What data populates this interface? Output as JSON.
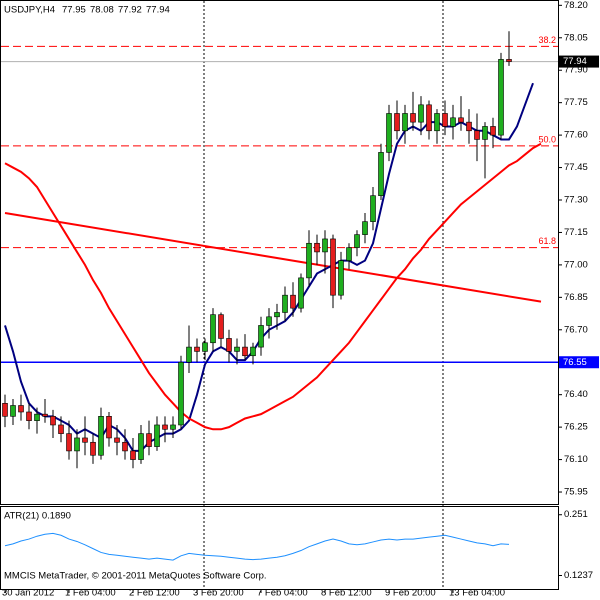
{
  "chart_data": [
    {
      "type": "candlestick",
      "title": "USDJPY,H4",
      "categories": [
        "30 Jan 2012",
        null,
        null,
        null,
        null,
        null,
        null,
        null,
        "1 Feb 04:00",
        null,
        null,
        null,
        null,
        null,
        null,
        null,
        "2 Feb 12:00",
        null,
        null,
        null,
        null,
        null,
        null,
        null,
        "3 Feb 20:00",
        null,
        null,
        null,
        null,
        null,
        null,
        null,
        "7 Feb 04:00",
        null,
        null,
        null,
        null,
        null,
        null,
        null,
        "8 Feb 12:00",
        null,
        null,
        null,
        null,
        null,
        null,
        null,
        "9 Feb 20:00",
        null,
        null,
        null,
        null,
        null,
        null,
        null,
        "13 Feb 04:00",
        null,
        null,
        null,
        null,
        null,
        null,
        null,
        null,
        null,
        null,
        null
      ],
      "open": [
        76.36,
        76.3,
        76.35,
        76.32,
        76.28,
        76.31,
        76.3,
        76.26,
        76.22,
        76.14,
        76.2,
        76.18,
        76.12,
        76.3,
        76.2,
        76.18,
        76.14,
        76.1,
        76.22,
        76.16,
        76.26,
        76.24,
        76.26,
        76.55,
        76.62,
        76.6,
        76.64,
        76.77,
        76.66,
        76.6,
        76.62,
        76.58,
        76.62,
        76.72,
        76.76,
        76.78,
        76.86,
        76.8,
        76.94,
        77.1,
        77.06,
        77.12,
        76.86,
        77.02,
        77.08,
        77.14,
        77.2,
        77.32,
        77.52,
        77.7,
        77.62,
        77.7,
        77.66,
        77.74,
        77.62,
        77.7,
        77.64,
        77.68,
        77.66,
        77.62,
        77.58,
        77.64,
        77.6,
        77.95,
        null,
        null,
        null,
        null
      ],
      "high": [
        76.4,
        76.38,
        76.4,
        76.36,
        76.34,
        76.38,
        76.33,
        76.3,
        76.28,
        76.24,
        76.3,
        76.22,
        76.34,
        76.32,
        76.26,
        76.24,
        76.2,
        76.26,
        76.28,
        76.3,
        76.3,
        76.3,
        76.58,
        76.72,
        76.66,
        76.66,
        76.8,
        76.78,
        76.7,
        76.66,
        76.68,
        76.64,
        76.76,
        76.8,
        76.82,
        76.9,
        76.92,
        76.96,
        77.16,
        77.14,
        77.16,
        77.14,
        77.06,
        77.1,
        77.16,
        77.24,
        77.36,
        77.56,
        77.74,
        77.76,
        77.74,
        77.8,
        77.78,
        77.76,
        77.72,
        77.76,
        77.74,
        77.78,
        77.72,
        77.7,
        77.66,
        77.68,
        77.98,
        78.08,
        null,
        null,
        null,
        null
      ],
      "low": [
        76.25,
        76.26,
        76.28,
        76.24,
        76.22,
        76.27,
        76.2,
        76.18,
        76.1,
        76.06,
        76.12,
        76.08,
        76.1,
        76.16,
        76.12,
        76.1,
        76.06,
        76.08,
        76.12,
        76.14,
        76.18,
        76.2,
        76.24,
        76.5,
        76.55,
        76.56,
        76.6,
        76.62,
        76.55,
        76.54,
        76.56,
        76.54,
        76.58,
        76.66,
        76.7,
        76.74,
        76.76,
        76.78,
        76.9,
        77.0,
        76.96,
        76.8,
        76.84,
        76.98,
        77.04,
        77.1,
        77.16,
        77.3,
        77.48,
        77.58,
        77.56,
        77.62,
        77.6,
        77.58,
        77.56,
        77.6,
        77.58,
        77.62,
        77.56,
        77.48,
        77.4,
        77.54,
        77.58,
        77.92,
        null,
        null,
        null,
        null
      ],
      "close": [
        76.3,
        76.35,
        76.32,
        76.28,
        76.31,
        76.3,
        76.26,
        76.22,
        76.14,
        76.2,
        76.18,
        76.12,
        76.3,
        76.2,
        76.18,
        76.14,
        76.1,
        76.22,
        76.16,
        76.26,
        76.24,
        76.26,
        76.55,
        76.62,
        76.6,
        76.64,
        76.77,
        76.66,
        76.6,
        76.62,
        76.58,
        76.62,
        76.72,
        76.76,
        76.78,
        76.86,
        76.8,
        76.94,
        77.1,
        77.06,
        77.12,
        76.86,
        77.02,
        77.08,
        77.14,
        77.2,
        77.32,
        77.52,
        77.7,
        77.62,
        77.7,
        77.66,
        77.74,
        77.62,
        77.7,
        77.64,
        77.68,
        77.66,
        77.62,
        77.58,
        77.64,
        77.6,
        77.95,
        77.94,
        null,
        null,
        null,
        null
      ],
      "up_color": "#1fae1f",
      "down_color": "#e41e1e",
      "overlays": [
        {
          "color": "#000080",
          "values": [
            76.72,
            76.6,
            76.46,
            76.36,
            76.32,
            76.3,
            76.3,
            76.28,
            76.26,
            76.22,
            76.24,
            76.22,
            76.2,
            76.26,
            76.24,
            76.2,
            76.14,
            76.14,
            76.18,
            76.2,
            76.22,
            76.22,
            76.24,
            76.28,
            76.4,
            76.54,
            76.6,
            76.62,
            76.6,
            76.56,
            76.56,
            76.6,
            76.66,
            76.7,
            76.72,
            76.74,
            76.78,
            76.84,
            76.9,
            76.96,
            76.98,
            77.0,
            77.02,
            77.02,
            77.0,
            77.02,
            77.1,
            77.26,
            77.42,
            77.56,
            77.62,
            77.64,
            77.62,
            77.66,
            77.66,
            77.64,
            77.64,
            77.66,
            77.64,
            77.62,
            77.62,
            77.6,
            77.58,
            77.58,
            77.64,
            77.74,
            77.84,
            null
          ]
        },
        {
          "color": "#ff0000",
          "values": [
            77.47,
            77.45,
            77.43,
            77.4,
            77.36,
            77.3,
            77.24,
            77.18,
            77.12,
            77.06,
            77.0,
            76.93,
            76.87,
            76.8,
            76.74,
            76.68,
            76.62,
            76.56,
            76.5,
            76.45,
            76.4,
            76.36,
            76.32,
            76.29,
            76.27,
            76.25,
            76.24,
            76.24,
            76.25,
            76.27,
            76.29,
            76.3,
            76.31,
            76.33,
            76.35,
            76.37,
            76.39,
            76.42,
            76.45,
            76.48,
            76.52,
            76.56,
            76.6,
            76.64,
            76.69,
            76.74,
            76.79,
            76.84,
            76.89,
            76.94,
            76.98,
            77.03,
            77.07,
            77.12,
            77.16,
            77.2,
            77.24,
            77.28,
            77.31,
            77.34,
            77.37,
            77.4,
            77.43,
            77.46,
            77.48,
            77.51,
            77.54,
            77.56
          ]
        }
      ],
      "trendline": {
        "color": "#ff0000",
        "x": [
          0,
          67
        ],
        "values": [
          77.24,
          76.83
        ]
      },
      "fib_levels": {
        "color": "#ff0000",
        "levels": [
          {
            "value": 78.01,
            "label": "38.2"
          },
          {
            "value": 77.55,
            "label": "50.0"
          },
          {
            "value": 77.08,
            "label": "61.8"
          }
        ]
      },
      "hline": {
        "value": 76.55,
        "color": "#0000ff"
      },
      "ylim": [
        75.89,
        78.22
      ],
      "yticks": [
        {
          "value": 78.2,
          "label": "78.20"
        },
        78.05,
        {
          "value": 77.9,
          "label": "77.90"
        },
        77.75,
        {
          "value": 77.6,
          "label": "77.60"
        },
        77.45,
        {
          "value": 77.3,
          "label": "77.30"
        },
        77.15,
        {
          "value": 77.0,
          "label": "77.00"
        },
        76.85,
        {
          "value": 76.7,
          "label": "76.70"
        },
        {
          "value": 76.4,
          "label": "76.40"
        },
        76.25,
        {
          "value": 76.1,
          "label": "76.10"
        },
        75.95
      ]
    },
    {
      "type": "line",
      "title": "ATR(21) 0.1890",
      "footer": "MMCIS MetaTrader, © 2001-2011 MetaQuotes Software Corp.",
      "color": "#1e90ff",
      "values": [
        0.186,
        0.19,
        0.196,
        0.2,
        0.206,
        0.21,
        0.212,
        0.208,
        0.2,
        0.195,
        0.188,
        0.18,
        0.172,
        0.168,
        0.166,
        0.164,
        0.162,
        0.16,
        0.158,
        0.16,
        0.158,
        0.156,
        0.165,
        0.17,
        0.168,
        0.166,
        0.165,
        0.164,
        0.162,
        0.16,
        0.158,
        0.157,
        0.158,
        0.16,
        0.162,
        0.165,
        0.17,
        0.176,
        0.184,
        0.19,
        0.196,
        0.2,
        0.196,
        0.19,
        0.188,
        0.19,
        0.194,
        0.198,
        0.2,
        0.198,
        0.2,
        0.2,
        0.202,
        0.204,
        0.206,
        0.208,
        0.204,
        0.2,
        0.196,
        0.192,
        0.19,
        0.186,
        0.19,
        0.189
      ],
      "ylim": [
        0.0954,
        0.2672
      ],
      "yticks": [
        0.251,
        0.1237
      ]
    }
  ]
}
